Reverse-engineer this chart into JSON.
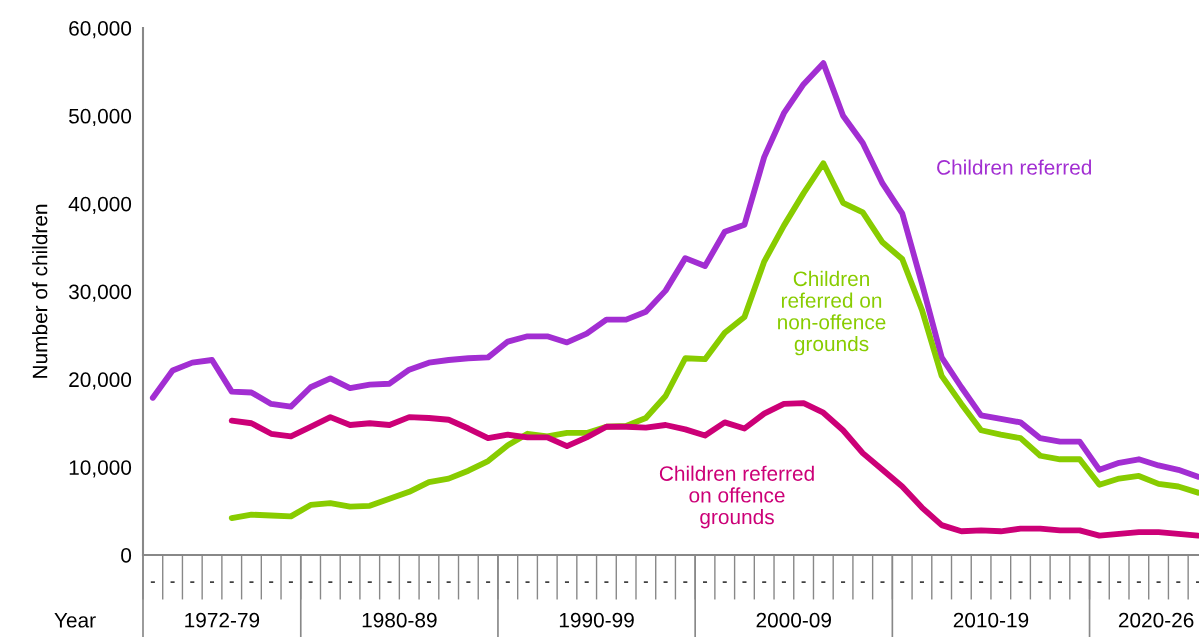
{
  "chart_data": {
    "type": "line",
    "xlabel": "Year",
    "ylabel": "Number of children",
    "categories": [
      "-",
      "-",
      "-",
      "-",
      "-",
      "-",
      "-",
      "-",
      "-",
      "-",
      "-",
      "-",
      "-",
      "-",
      "-",
      "-",
      "-",
      "-",
      "-",
      "-",
      "-",
      "-",
      "-",
      "-",
      "-",
      "-",
      "-",
      "-",
      "-",
      "-",
      "-",
      "-",
      "-",
      "-",
      "-",
      "-",
      "-",
      "-",
      "-",
      "-",
      "-",
      "-",
      "-",
      "-",
      "-",
      "-",
      "-",
      "-",
      "-",
      "-",
      "-",
      "-",
      "-",
      "-"
    ],
    "ylim": [
      0,
      60000
    ],
    "yticks": [
      0,
      {
        "value": 10000,
        "label": "10,000"
      },
      {
        "value": 20000,
        "label": "20,000"
      },
      {
        "value": 30000,
        "label": "30,000"
      },
      {
        "value": 40000,
        "label": "40,000"
      },
      {
        "value": 50000,
        "label": "50,000"
      },
      {
        "value": 60000,
        "label": "60,000"
      }
    ],
    "grid": false,
    "legend": false,
    "marker": "none",
    "line_style": "solid",
    "series": [
      {
        "name": "Children referred",
        "color": "#a22ed2",
        "values": [
          17900,
          21000,
          21900,
          22200,
          18600,
          18500,
          17200,
          16900,
          19100,
          20100,
          19000,
          19400,
          19500,
          21100,
          21900,
          22200,
          22400,
          22500,
          24300,
          24900,
          24900,
          24200,
          25200,
          26800,
          26800,
          27700,
          30100,
          33800,
          32900,
          36800,
          37600,
          45300,
          50300,
          53600,
          56000,
          50000,
          46900,
          42300,
          38900,
          30900,
          22500,
          19100,
          15900,
          15500,
          15100,
          13300,
          12900,
          12900,
          9700,
          10500,
          10900,
          10200,
          9700,
          8900
        ]
      },
      {
        "name": "Children\nreferred on\nnon-offence\ngrounds",
        "color": "#88cc00",
        "values": [
          null,
          null,
          null,
          null,
          4200,
          4600,
          4500,
          4400,
          5700,
          5900,
          5500,
          5600,
          6400,
          7200,
          8300,
          8700,
          9600,
          10700,
          12500,
          13800,
          13500,
          13900,
          13900,
          14600,
          14700,
          15600,
          18100,
          22400,
          22300,
          25300,
          27100,
          33400,
          37500,
          41200,
          44600,
          40100,
          39000,
          35600,
          33700,
          27900,
          20400,
          17200,
          14200,
          13700,
          13300,
          11300,
          10900,
          10900,
          8000,
          8700,
          9000,
          8100,
          7800,
          7100
        ]
      },
      {
        "name": "Children referred\non offence\ngrounds",
        "color": "#cc0077",
        "values": [
          null,
          null,
          null,
          null,
          15300,
          15000,
          13800,
          13500,
          14600,
          15700,
          14800,
          15000,
          14800,
          15700,
          15600,
          15400,
          14400,
          13300,
          13700,
          13400,
          13400,
          12400,
          13400,
          14600,
          14600,
          14500,
          14800,
          14300,
          13600,
          15100,
          14400,
          16100,
          17200,
          17300,
          16200,
          14200,
          11600,
          9700,
          7800,
          5400,
          3400,
          2700,
          2800,
          2700,
          3000,
          3000,
          2800,
          2800,
          2200,
          2400,
          2600,
          2600,
          2400,
          2200
        ]
      }
    ],
    "annotations": [
      "1972-79",
      "1980-89",
      "1990-99",
      "2000-09",
      "2010-19",
      "2020-26"
    ]
  }
}
